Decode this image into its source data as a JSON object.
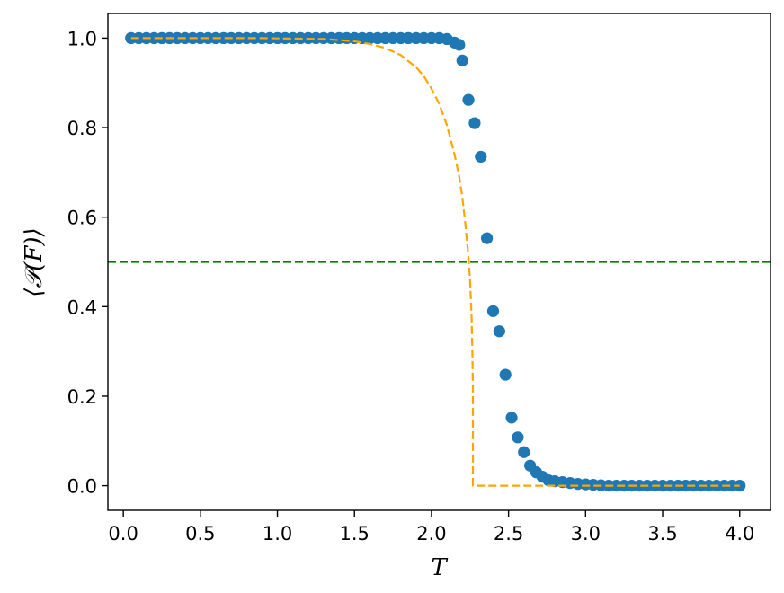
{
  "chart_data": {
    "type": "scatter",
    "xlabel": "T",
    "ylabel": "⟨𝒫(F)⟩",
    "xlim": [
      -0.1,
      4.2
    ],
    "ylim": [
      -0.055,
      1.055
    ],
    "xticks": [
      "0.0",
      "0.5",
      "1.0",
      "1.5",
      "2.0",
      "2.5",
      "3.0",
      "3.5",
      "4.0"
    ],
    "yticks": [
      "0.0",
      "0.2",
      "0.4",
      "0.6",
      "0.8",
      "1.0"
    ],
    "grid": false,
    "series": [
      {
        "kind": "scatter",
        "color": "#1f77b4",
        "x": [
          0.05,
          0.1,
          0.15,
          0.2,
          0.25,
          0.3,
          0.35,
          0.4,
          0.45,
          0.5,
          0.55,
          0.6,
          0.65,
          0.7,
          0.75,
          0.8,
          0.85,
          0.9,
          0.95,
          1.0,
          1.05,
          1.1,
          1.15,
          1.2,
          1.25,
          1.3,
          1.35,
          1.4,
          1.45,
          1.5,
          1.55,
          1.6,
          1.65,
          1.7,
          1.75,
          1.8,
          1.85,
          1.9,
          1.95,
          2.0,
          2.05,
          2.1,
          2.15,
          2.18,
          2.2,
          2.24,
          2.28,
          2.32,
          2.36,
          2.4,
          2.44,
          2.48,
          2.52,
          2.56,
          2.6,
          2.64,
          2.68,
          2.72,
          2.76,
          2.8,
          2.85,
          2.9,
          2.95,
          3.0,
          3.05,
          3.1,
          3.15,
          3.2,
          3.25,
          3.3,
          3.35,
          3.4,
          3.45,
          3.5,
          3.55,
          3.6,
          3.65,
          3.7,
          3.75,
          3.8,
          3.85,
          3.9,
          3.95,
          4.0
        ],
        "y": [
          1,
          1,
          1,
          1,
          1,
          1,
          1,
          1,
          1,
          1,
          1,
          1,
          1,
          1,
          1,
          1,
          1,
          1,
          1,
          1,
          1,
          1,
          1,
          1,
          1,
          1,
          1,
          1,
          1,
          1,
          1,
          1,
          1,
          1,
          1,
          1,
          1,
          1,
          1,
          1,
          1,
          0.998,
          0.99,
          0.985,
          0.95,
          0.862,
          0.81,
          0.735,
          0.553,
          0.39,
          0.345,
          0.248,
          0.152,
          0.108,
          0.075,
          0.045,
          0.03,
          0.02,
          0.012,
          0.01,
          0.008,
          0.006,
          0.004,
          0.003,
          0.002,
          0.001,
          0,
          0,
          0,
          0,
          0,
          0,
          0,
          0,
          0,
          0,
          0,
          0,
          0,
          0,
          0,
          0,
          0,
          0
        ]
      },
      {
        "kind": "dashed-line",
        "color": "#ffa500",
        "x": [
          0.05,
          0.3,
          0.6,
          0.9,
          1.1,
          1.3,
          1.5,
          1.6,
          1.7,
          1.8,
          1.9,
          1.95,
          2.0,
          2.05,
          2.1,
          2.15,
          2.18,
          2.2,
          2.22,
          2.24,
          2.25,
          2.26,
          2.265,
          2.269,
          2.269,
          2.3,
          2.6,
          3.0,
          3.5,
          4.0
        ],
        "y": [
          1,
          1,
          1,
          1,
          0.999,
          0.998,
          0.993,
          0.987,
          0.978,
          0.962,
          0.935,
          0.915,
          0.887,
          0.853,
          0.805,
          0.74,
          0.69,
          0.645,
          0.585,
          0.51,
          0.46,
          0.38,
          0.3,
          0.22,
          0,
          0,
          0,
          0,
          0,
          0
        ]
      },
      {
        "kind": "hline",
        "color": "#008000",
        "y": 0.5
      }
    ]
  }
}
